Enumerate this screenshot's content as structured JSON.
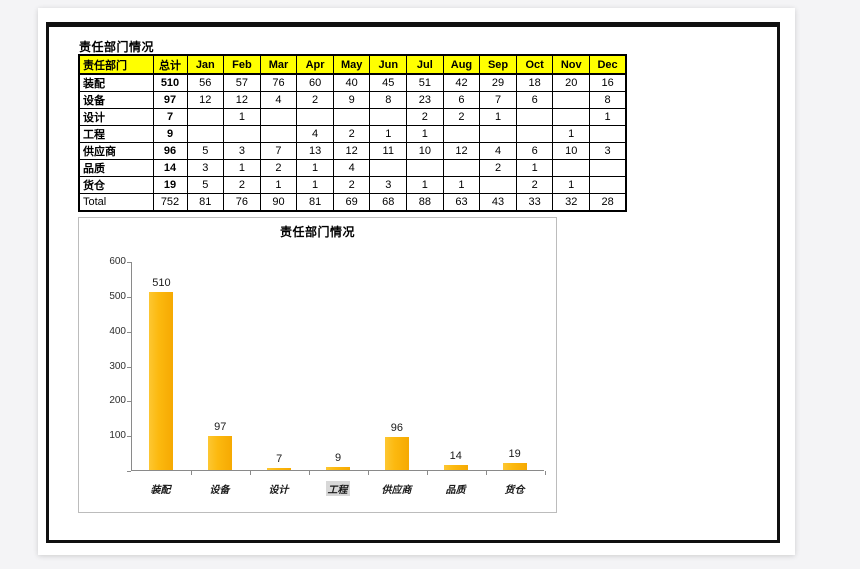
{
  "page": {
    "sheet_title": "责任部门情况"
  },
  "table": {
    "columns": [
      "责任部门",
      "总计",
      "Jan",
      "Feb",
      "Mar",
      "Apr",
      "May",
      "Jun",
      "Jul",
      "Aug",
      "Sep",
      "Oct",
      "Nov",
      "Dec"
    ],
    "rows": [
      {
        "label": "装配",
        "total": "510",
        "months": [
          "56",
          "57",
          "76",
          "60",
          "40",
          "45",
          "51",
          "42",
          "29",
          "18",
          "20",
          "16"
        ]
      },
      {
        "label": "设备",
        "total": "97",
        "months": [
          "12",
          "12",
          "4",
          "2",
          "9",
          "8",
          "23",
          "6",
          "7",
          "6",
          "",
          "8"
        ]
      },
      {
        "label": "设计",
        "total": "7",
        "months": [
          "",
          "1",
          "",
          "",
          "",
          "",
          "2",
          "2",
          "1",
          "",
          "",
          "1"
        ]
      },
      {
        "label": "工程",
        "total": "9",
        "months": [
          "",
          "",
          "",
          "4",
          "2",
          "1",
          "1",
          "",
          "",
          "",
          "1",
          ""
        ]
      },
      {
        "label": "供应商",
        "total": "96",
        "months": [
          "5",
          "3",
          "7",
          "13",
          "12",
          "11",
          "10",
          "12",
          "4",
          "6",
          "10",
          "3"
        ]
      },
      {
        "label": "品质",
        "total": "14",
        "months": [
          "3",
          "1",
          "2",
          "1",
          "4",
          "",
          "",
          "",
          "2",
          "1",
          "",
          ""
        ]
      },
      {
        "label": "货仓",
        "total": "19",
        "months": [
          "5",
          "2",
          "1",
          "1",
          "2",
          "3",
          "1",
          "1",
          "",
          "2",
          "1",
          ""
        ]
      },
      {
        "label": "Total",
        "total": "752",
        "months": [
          "81",
          "76",
          "90",
          "81",
          "69",
          "68",
          "88",
          "63",
          "43",
          "33",
          "32",
          "28"
        ],
        "is_total": true
      }
    ]
  },
  "chart_data": {
    "type": "bar",
    "title": "责任部门情况",
    "categories": [
      "装配",
      "设备",
      "设计",
      "工程",
      "供应商",
      "品质",
      "货仓"
    ],
    "values": [
      510,
      97,
      7,
      9,
      96,
      14,
      19
    ],
    "xlabel": "",
    "ylabel": "",
    "ylim": [
      0,
      600
    ],
    "ytick_step": 100,
    "ytick_labels": [
      "100",
      "200",
      "300",
      "400",
      "500",
      "600"
    ],
    "grid": false,
    "legend": "none",
    "bar_color": "#FCB90F",
    "highlighted_category": "工程"
  },
  "colors": {
    "header_fill": "#FFFF00",
    "bar_fill": "#FCB90F",
    "page_background": "#FFFFFF",
    "desktop_background": "#F4F4F6",
    "frame_border": "#101010",
    "chart_border": "#BCBCBC"
  }
}
